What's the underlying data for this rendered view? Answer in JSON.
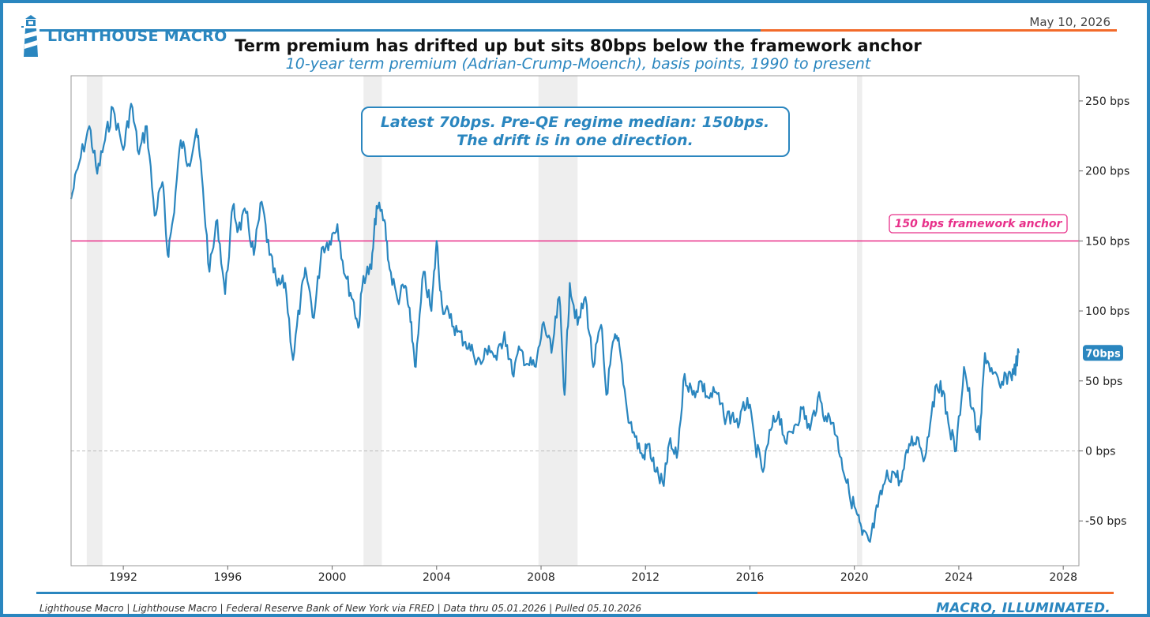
{
  "header": {
    "brand": "LIGHTHOUSE MACRO",
    "date": "May 10, 2026",
    "brand_color": "#2a86bf",
    "accent_color": "#f26a2a"
  },
  "chart_data": {
    "type": "line",
    "title": "Term premium has drifted up but sits 80bps below the framework anchor",
    "subtitle": "10-year term premium (Adrian-Crump-Moench), basis points, 1990 to present",
    "xlim": [
      1990,
      2028.6
    ],
    "ylim": [
      -82,
      268
    ],
    "x_ticks": [
      1992,
      1996,
      2000,
      2004,
      2008,
      2012,
      2016,
      2020,
      2024,
      2028
    ],
    "y_ticks": [
      -50,
      0,
      50,
      100,
      150,
      200,
      250
    ],
    "y_tick_suffix": " bps",
    "grid": false,
    "zero_line": true,
    "series": [
      {
        "color": "#2a86bf",
        "x": [
          1990.0,
          1990.3,
          1990.7,
          1991.0,
          1991.3,
          1991.6,
          1992.0,
          1992.3,
          1992.6,
          1992.9,
          1993.2,
          1993.5,
          1993.7,
          1993.9,
          1994.2,
          1994.5,
          1994.8,
          1995.0,
          1995.3,
          1995.6,
          1995.9,
          1996.2,
          1996.4,
          1996.7,
          1997.0,
          1997.3,
          1997.6,
          1997.9,
          1998.2,
          1998.5,
          1998.8,
          1999.0,
          1999.3,
          1999.6,
          1999.9,
          2000.2,
          2000.5,
          2000.8,
          2001.0,
          2001.2,
          2001.5,
          2001.7,
          2002.0,
          2002.2,
          2002.5,
          2002.8,
          2003.0,
          2003.2,
          2003.5,
          2003.8,
          2004.0,
          2004.2,
          2004.5,
          2004.8,
          2005.1,
          2005.4,
          2005.7,
          2006.0,
          2006.3,
          2006.6,
          2006.9,
          2007.2,
          2007.5,
          2007.8,
          2008.1,
          2008.4,
          2008.7,
          2008.9,
          2009.1,
          2009.4,
          2009.7,
          2010.0,
          2010.3,
          2010.5,
          2010.8,
          2011.0,
          2011.3,
          2011.6,
          2011.9,
          2012.1,
          2012.4,
          2012.7,
          2012.9,
          2013.2,
          2013.5,
          2013.8,
          2014.1,
          2014.4,
          2014.7,
          2015.0,
          2015.3,
          2015.6,
          2015.9,
          2016.2,
          2016.5,
          2016.8,
          2017.1,
          2017.4,
          2017.7,
          2018.0,
          2018.3,
          2018.6,
          2018.9,
          2019.2,
          2019.5,
          2019.8,
          2020.1,
          2020.3,
          2020.6,
          2020.9,
          2021.2,
          2021.5,
          2021.8,
          2022.1,
          2022.4,
          2022.7,
          2023.0,
          2023.3,
          2023.6,
          2023.9,
          2024.2,
          2024.5,
          2024.8,
          2025.0,
          2025.3,
          2025.6,
          2025.9,
          2026.1,
          2026.3
        ],
        "y": [
          180,
          205,
          232,
          198,
          222,
          245,
          215,
          248,
          212,
          232,
          168,
          192,
          140,
          165,
          222,
          205,
          230,
          198,
          128,
          165,
          112,
          175,
          158,
          170,
          140,
          178,
          140,
          118,
          120,
          65,
          110,
          128,
          95,
          145,
          150,
          162,
          125,
          108,
          88,
          125,
          130,
          175,
          165,
          130,
          108,
          118,
          92,
          60,
          128,
          100,
          150,
          105,
          95,
          85,
          78,
          70,
          62,
          75,
          65,
          85,
          55,
          72,
          62,
          60,
          92,
          70,
          110,
          40,
          120,
          90,
          110,
          60,
          90,
          40,
          80,
          75,
          28,
          10,
          -5,
          5,
          -15,
          -25,
          5,
          -5,
          55,
          40,
          50,
          38,
          42,
          25,
          25,
          20,
          38,
          5,
          -15,
          15,
          28,
          5,
          18,
          30,
          15,
          38,
          25,
          20,
          -5,
          -30,
          -45,
          -60,
          -65,
          -40,
          -20,
          -15,
          -22,
          5,
          10,
          -5,
          35,
          50,
          20,
          0,
          60,
          30,
          8,
          70,
          55,
          45,
          55,
          55,
          70
        ]
      }
    ],
    "reference_line": {
      "value": 150,
      "label": "150 bps framework anchor",
      "color": "#e8308a"
    },
    "shaded_periods": [
      [
        1990.6,
        1991.2
      ],
      [
        2001.2,
        2001.9
      ],
      [
        2007.9,
        2009.4
      ],
      [
        2020.1,
        2020.3
      ]
    ],
    "annotation": {
      "line1": "Latest 70bps. Pre-QE regime median: 150bps.",
      "line2": "The drift is in one direction."
    },
    "last_value_label": "70bps",
    "last_value": 70
  },
  "footer": {
    "source": "Lighthouse Macro | Lighthouse Macro | Federal Reserve Bank of New York via FRED | Data thru 05.01.2026 | Pulled 05.10.2026",
    "tagline": "MACRO, ILLUMINATED."
  }
}
